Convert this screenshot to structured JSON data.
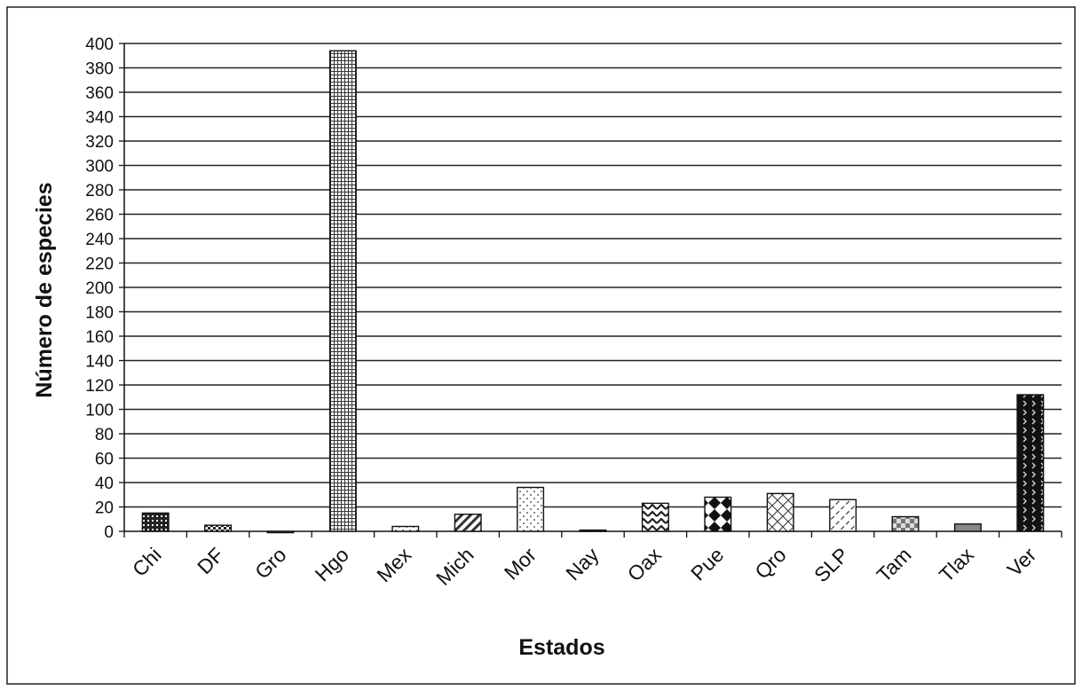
{
  "chart_data": {
    "type": "bar",
    "xlabel": "Estados",
    "ylabel": "Número de especies",
    "ylim": [
      0,
      400
    ],
    "ytick_step": 20,
    "grid": true,
    "legend": "none",
    "categories": [
      "Chi",
      "DF",
      "Gro",
      "Hgo",
      "Mex",
      "Mich",
      "Mor",
      "Nay",
      "Oax",
      "Pue",
      "Qro",
      "SLP",
      "Tam",
      "Tlax",
      "Ver"
    ],
    "values": [
      15,
      5,
      0,
      394,
      4,
      14,
      36,
      1,
      23,
      28,
      31,
      26,
      12,
      6,
      112
    ],
    "yticks": [
      "0",
      "20",
      "40",
      "60",
      "80",
      "100",
      "120",
      "140",
      "160",
      "180",
      "200",
      "220",
      "240",
      "260",
      "280",
      "300",
      "320",
      "340",
      "360",
      "380",
      "400"
    ]
  }
}
